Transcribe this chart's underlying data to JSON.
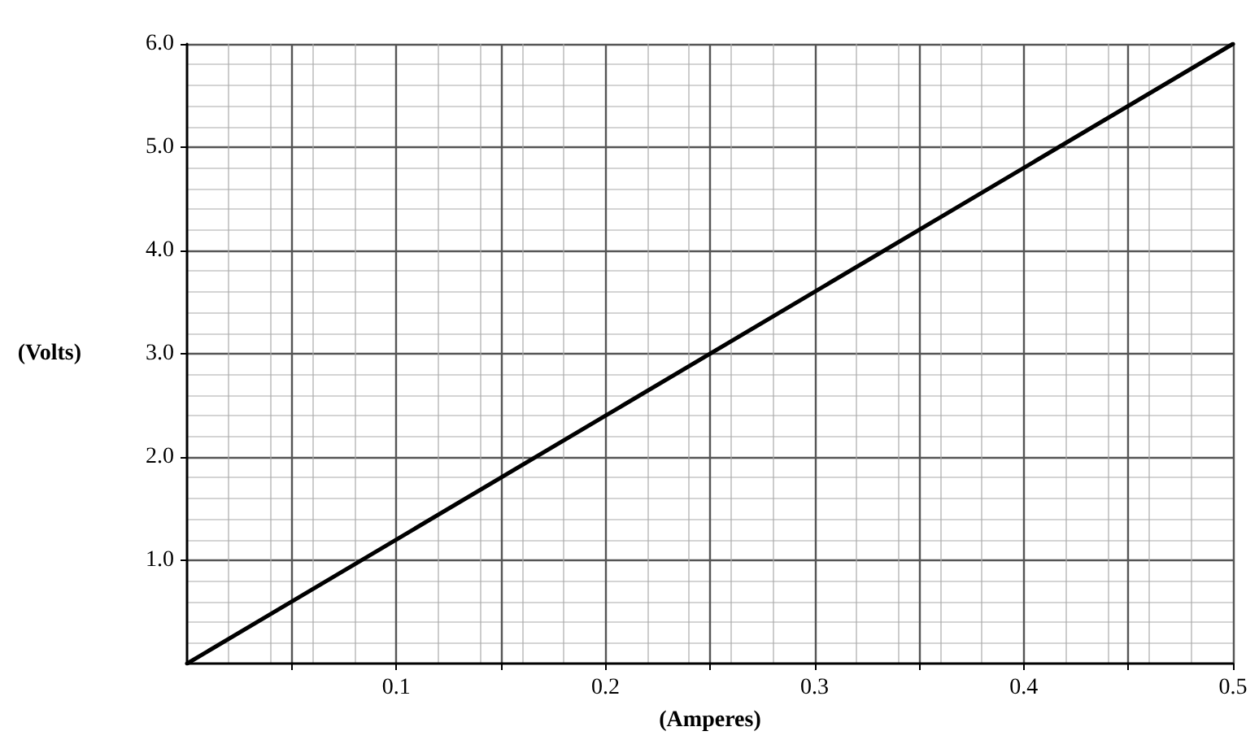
{
  "chart_data": {
    "type": "line",
    "xlabel": "(Amperes)",
    "ylabel": "(Volts)",
    "x": [
      0,
      0.5
    ],
    "series": [
      {
        "color": "#000000",
        "values": [
          0,
          6.0
        ]
      }
    ],
    "xlim": [
      0,
      0.5
    ],
    "xticks": [
      {
        "value": 0.05,
        "label": null
      },
      0.1,
      {
        "value": 0.15,
        "label": null
      },
      0.2,
      {
        "value": 0.25,
        "label": null
      },
      0.3,
      {
        "value": 0.35,
        "label": null
      },
      0.4,
      {
        "value": 0.45,
        "label": null
      },
      0.5
    ],
    "ylim": [
      0,
      6.0
    ],
    "yticks": [
      {
        "value": 1,
        "label": "1.0"
      },
      {
        "value": 2,
        "label": "2.0"
      },
      {
        "value": 3,
        "label": "3.0"
      },
      {
        "value": 4,
        "label": "4.0"
      },
      {
        "value": 5,
        "label": "5.0"
      },
      {
        "value": 6,
        "label": "6.0"
      }
    ],
    "grid": true,
    "marker": "none",
    "line_style": "solid"
  }
}
